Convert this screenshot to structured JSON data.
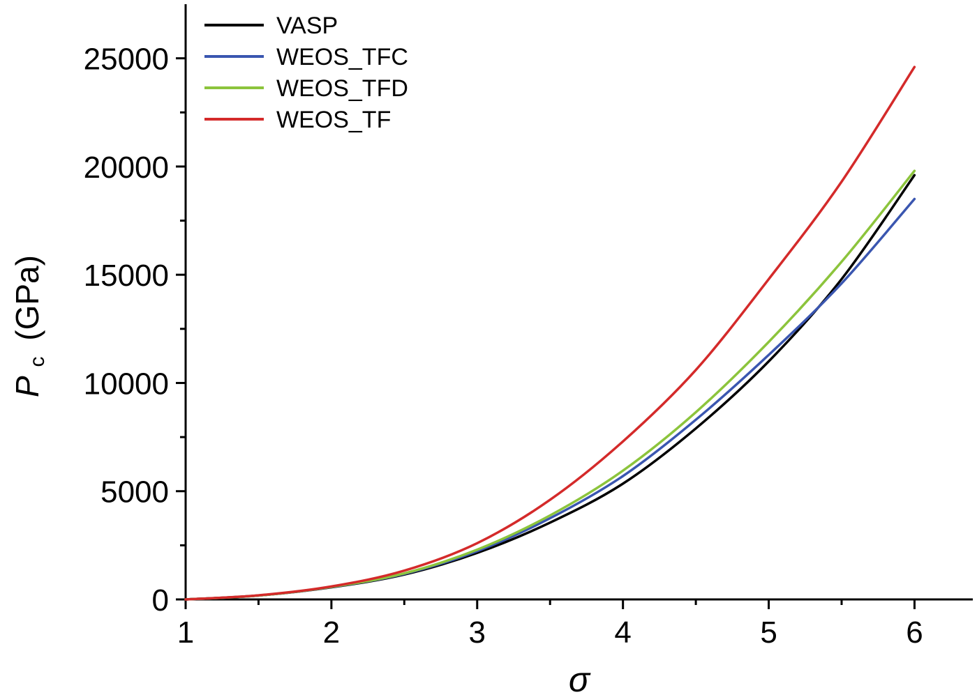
{
  "chart_data": {
    "type": "line",
    "xlabel": "σ",
    "ylabel_main": "P",
    "ylabel_sub": "c",
    "ylabel_unit": "(GPa)",
    "xlim": [
      1,
      6.4
    ],
    "ylim": [
      0,
      27500
    ],
    "x_ticks": [
      1,
      2,
      3,
      4,
      5,
      6
    ],
    "x_minor_ticks": [
      1.5,
      2.5,
      3.5,
      4.5,
      5.5
    ],
    "y_ticks": [
      0,
      5000,
      10000,
      15000,
      20000,
      25000
    ],
    "y_minor_ticks": [
      2500,
      7500,
      12500,
      17500,
      22500
    ],
    "legend_position": "top-left",
    "grid": false,
    "series": [
      {
        "name": "VASP",
        "color": "#000000",
        "x": [
          1,
          1.5,
          2,
          2.5,
          3,
          3.5,
          4,
          4.5,
          5,
          5.5,
          6
        ],
        "y": [
          0,
          180,
          560,
          1150,
          2150,
          3550,
          5350,
          7900,
          11000,
          14800,
          19600
        ]
      },
      {
        "name": "WEOS_TFC",
        "color": "#3a56b0",
        "x": [
          1,
          1.5,
          2,
          2.5,
          3,
          3.5,
          4,
          4.5,
          5,
          5.5,
          6
        ],
        "y": [
          0,
          180,
          570,
          1180,
          2230,
          3750,
          5700,
          8300,
          11300,
          14600,
          18500
        ]
      },
      {
        "name": "WEOS_TFD",
        "color": "#8cc43c",
        "x": [
          1,
          1.5,
          2,
          2.5,
          3,
          3.5,
          4,
          4.5,
          5,
          5.5,
          6
        ],
        "y": [
          0,
          180,
          580,
          1200,
          2300,
          3880,
          5950,
          8650,
          11900,
          15600,
          19800
        ]
      },
      {
        "name": "WEOS_TF",
        "color": "#d42a2a",
        "x": [
          1,
          1.5,
          2,
          2.5,
          3,
          3.5,
          4,
          4.5,
          5,
          5.5,
          6
        ],
        "y": [
          0,
          190,
          600,
          1330,
          2600,
          4600,
          7300,
          10600,
          14800,
          19300,
          24600
        ]
      }
    ]
  }
}
